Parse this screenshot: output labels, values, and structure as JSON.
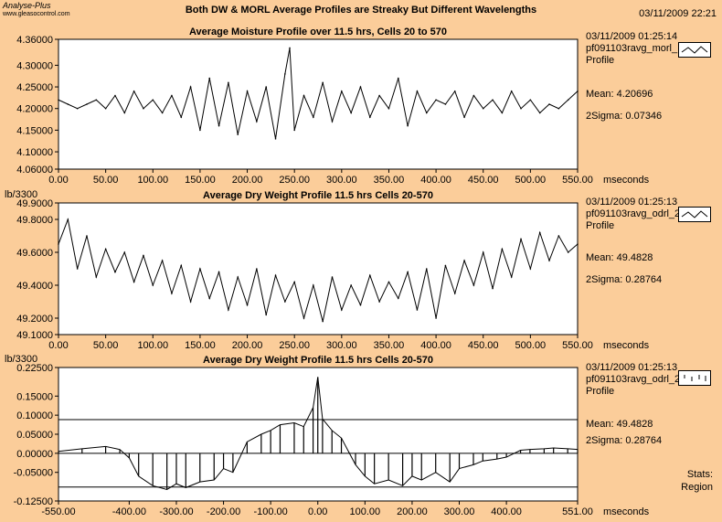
{
  "header": {
    "app_name": "Analyse-Plus",
    "app_url": "www.gleasocontrol.com",
    "title": "Both DW & MORL Average Profiles are Streaky But Different Wavelengths",
    "datetime": "03/11/2009 22:21"
  },
  "colors": {
    "background": "#fbcd9a",
    "plot_bg": "#ffffff",
    "trace": "#000000"
  },
  "stats_button": {
    "line1": "Stats:",
    "line2": "Region"
  },
  "panels": [
    {
      "title": "Average Moisture Profile over 11.5 hrs, Cells 20 to 570",
      "unit_label": "",
      "x_unit": "mseconds",
      "timestamp": "03/11/2009 01:25:14",
      "tag": "pf091103ravg_morl_",
      "profile_label": "Profile",
      "mean_label": "Mean: 4.20696",
      "sigma_label": "2Sigma: 0.07346",
      "legend_icon": "line-trace-icon"
    },
    {
      "title": "Average Dry Weight Profile 11.5 hrs Cells 20-570",
      "unit_label": "lb/3300",
      "x_unit": "mseconds",
      "timestamp": "03/11/2009 01:25:13",
      "tag": "pf091103ravg_odrl_2",
      "profile_label": "Profile",
      "mean_label": "Mean: 49.4828",
      "sigma_label": "2Sigma: 0.28764",
      "legend_icon": "line-trace-icon"
    },
    {
      "title": "Average Dry Weight Profile 11.5 hrs Cells 20-570",
      "unit_label": "lb/3300",
      "x_unit": "mseconds",
      "timestamp": "03/11/2009 01:25:13",
      "tag": "pf091103ravg_odrl_2",
      "profile_label": "Profile",
      "mean_label": "Mean: 49.4828",
      "sigma_label": "2Sigma: 0.28764",
      "legend_icon": "tick-marks-icon"
    }
  ],
  "chart_data": [
    {
      "type": "line",
      "title": "Average Moisture Profile over 11.5 hrs, Cells 20 to 570",
      "xlabel": "mseconds",
      "ylabel": "",
      "xlim": [
        0,
        550
      ],
      "ylim": [
        4.06,
        4.36
      ],
      "xticks": [
        0,
        50,
        100,
        150,
        200,
        250,
        300,
        350,
        400,
        450,
        500,
        550
      ],
      "xtick_labels": [
        "0.00",
        "50.00",
        "100.00",
        "150.00",
        "200.00",
        "250.00",
        "300.00",
        "350.00",
        "400.00",
        "450.00",
        "500.00",
        "550.00"
      ],
      "yticks": [
        4.06,
        4.1,
        4.15,
        4.2,
        4.25,
        4.3,
        4.36
      ],
      "ytick_labels": [
        "4.06000",
        "4.10000",
        "4.15000",
        "4.20000",
        "4.25000",
        "4.30000",
        "4.36000"
      ],
      "mean": 4.20696,
      "two_sigma": 0.07346,
      "x": [
        0,
        10,
        20,
        30,
        40,
        50,
        60,
        70,
        80,
        90,
        100,
        110,
        120,
        130,
        140,
        150,
        160,
        170,
        180,
        190,
        200,
        210,
        220,
        230,
        240,
        245,
        250,
        260,
        270,
        280,
        290,
        300,
        310,
        320,
        330,
        340,
        350,
        360,
        370,
        380,
        390,
        400,
        410,
        420,
        430,
        440,
        450,
        460,
        470,
        480,
        490,
        500,
        510,
        520,
        530,
        540,
        550
      ],
      "y": [
        4.22,
        4.21,
        4.2,
        4.21,
        4.22,
        4.2,
        4.23,
        4.19,
        4.24,
        4.2,
        4.22,
        4.19,
        4.23,
        4.18,
        4.25,
        4.15,
        4.27,
        4.16,
        4.26,
        4.14,
        4.24,
        4.17,
        4.25,
        4.13,
        4.28,
        4.34,
        4.15,
        4.23,
        4.18,
        4.26,
        4.17,
        4.24,
        4.19,
        4.25,
        4.18,
        4.23,
        4.2,
        4.27,
        4.16,
        4.24,
        4.19,
        4.22,
        4.21,
        4.24,
        4.18,
        4.23,
        4.2,
        4.22,
        4.19,
        4.24,
        4.2,
        4.22,
        4.19,
        4.21,
        4.2,
        4.22,
        4.24
      ]
    },
    {
      "type": "line",
      "title": "Average Dry Weight Profile 11.5 hrs Cells 20-570",
      "xlabel": "mseconds",
      "ylabel": "lb/3300",
      "xlim": [
        0,
        550
      ],
      "ylim": [
        49.1,
        49.9
      ],
      "xticks": [
        0,
        50,
        100,
        150,
        200,
        250,
        300,
        350,
        400,
        450,
        500,
        550
      ],
      "xtick_labels": [
        "0.00",
        "50.00",
        "100.00",
        "150.00",
        "200.00",
        "250.00",
        "300.00",
        "350.00",
        "400.00",
        "450.00",
        "500.00",
        "550.00"
      ],
      "yticks": [
        49.1,
        49.2,
        49.4,
        49.6,
        49.8,
        49.9
      ],
      "ytick_labels": [
        "49.1000",
        "49.2000",
        "49.4000",
        "49.6000",
        "49.8000",
        "49.9000"
      ],
      "mean": 49.4828,
      "two_sigma": 0.28764,
      "x": [
        0,
        10,
        20,
        30,
        40,
        50,
        60,
        70,
        80,
        90,
        100,
        110,
        120,
        130,
        140,
        150,
        160,
        170,
        180,
        190,
        200,
        210,
        220,
        230,
        240,
        250,
        260,
        270,
        280,
        290,
        300,
        310,
        320,
        330,
        340,
        350,
        360,
        370,
        380,
        390,
        400,
        410,
        420,
        430,
        440,
        450,
        460,
        470,
        480,
        490,
        500,
        510,
        520,
        530,
        540,
        550
      ],
      "y": [
        49.65,
        49.8,
        49.5,
        49.7,
        49.45,
        49.62,
        49.48,
        49.6,
        49.42,
        49.58,
        49.4,
        49.55,
        49.35,
        49.52,
        49.3,
        49.5,
        49.32,
        49.48,
        49.25,
        49.45,
        49.28,
        49.5,
        49.22,
        49.46,
        49.3,
        49.42,
        49.2,
        49.4,
        49.18,
        49.45,
        49.25,
        49.4,
        49.28,
        49.46,
        49.3,
        49.42,
        49.32,
        49.48,
        49.25,
        49.5,
        49.2,
        49.52,
        49.35,
        49.55,
        49.4,
        49.6,
        49.38,
        49.62,
        49.45,
        49.68,
        49.5,
        49.72,
        49.55,
        49.7,
        49.6,
        49.65
      ]
    },
    {
      "type": "line",
      "title": "Average Dry Weight Profile 11.5 hrs Cells 20-570",
      "xlabel": "mseconds",
      "ylabel": "lb/3300",
      "xlim": [
        -550,
        551
      ],
      "ylim": [
        -0.125,
        0.225
      ],
      "xticks": [
        -550,
        -400,
        -300,
        -200,
        -100,
        0,
        100,
        200,
        300,
        400,
        551
      ],
      "xtick_labels": [
        "-550.00",
        "-400.00",
        "-300.00",
        "-200.00",
        "-100.00",
        "0.00",
        "100.00",
        "200.00",
        "300.00",
        "400.00",
        "551.00"
      ],
      "yticks": [
        -0.125,
        -0.05,
        0,
        0.05,
        0.1,
        0.15,
        0.225
      ],
      "ytick_labels": [
        "-0.12500",
        "-0.05000",
        "0.00000",
        "0.05000",
        "0.10000",
        "0.15000",
        "0.22500"
      ],
      "reference_lines": [
        0.0885,
        -0.0885
      ],
      "x": [
        -550,
        -500,
        -450,
        -420,
        -400,
        -380,
        -350,
        -320,
        -300,
        -280,
        -250,
        -220,
        -200,
        -180,
        -150,
        -120,
        -100,
        -80,
        -50,
        -30,
        -10,
        0,
        10,
        30,
        50,
        80,
        100,
        120,
        150,
        180,
        200,
        220,
        250,
        280,
        300,
        330,
        350,
        380,
        400,
        430,
        450,
        480,
        500,
        530,
        551
      ],
      "y": [
        0.005,
        0.012,
        0.018,
        0.01,
        -0.012,
        -0.06,
        -0.085,
        -0.095,
        -0.08,
        -0.09,
        -0.075,
        -0.07,
        -0.04,
        -0.05,
        0.03,
        0.05,
        0.06,
        0.075,
        0.08,
        0.07,
        0.12,
        0.2,
        0.09,
        0.06,
        0.04,
        -0.03,
        -0.06,
        -0.08,
        -0.07,
        -0.085,
        -0.06,
        -0.07,
        -0.05,
        -0.075,
        -0.04,
        -0.03,
        -0.02,
        -0.015,
        -0.01,
        0.008,
        0.01,
        0.012,
        0.014,
        0.012,
        0.01
      ]
    }
  ]
}
